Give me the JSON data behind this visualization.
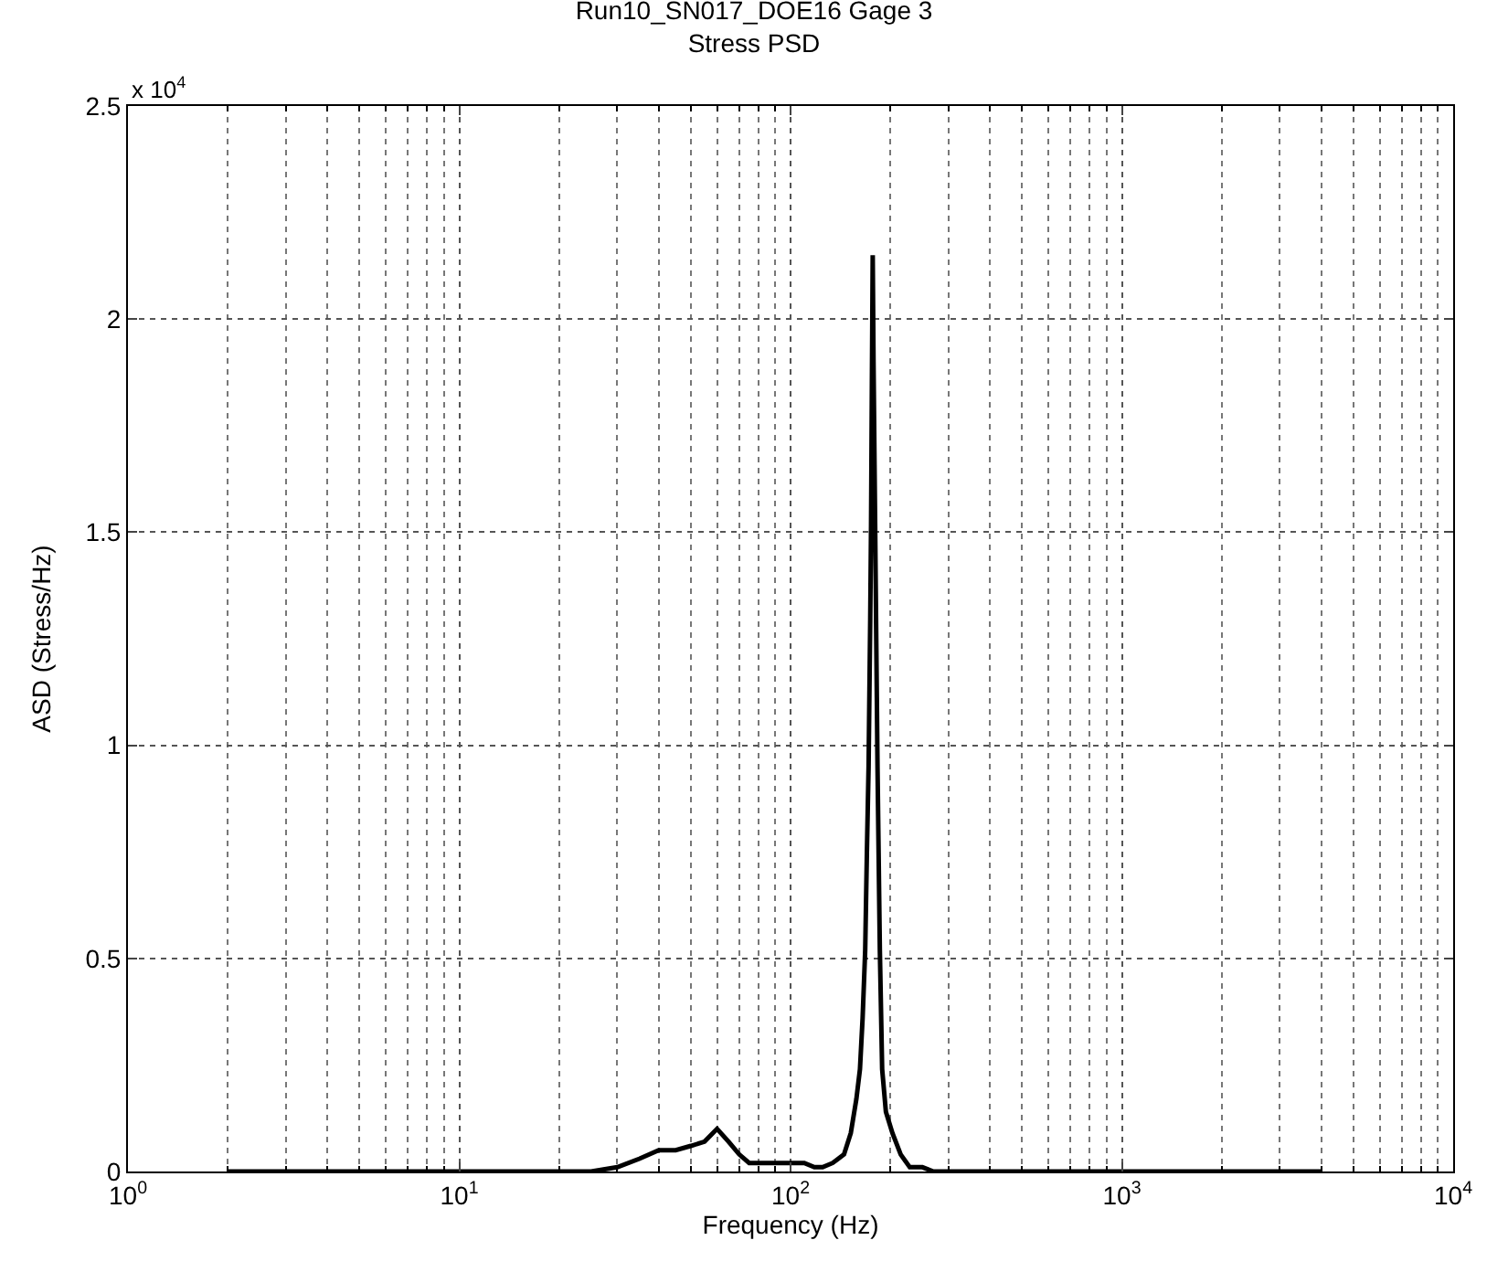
{
  "chart_data": {
    "type": "line",
    "title": "Run10_SN017_DOE16 Gage 3",
    "subtitle": "Stress PSD",
    "xlabel": "Frequency (Hz)",
    "ylabel": "ASD (Stress/Hz)",
    "annotations": [
      "x 10$^{4}$"
    ],
    "log": "x",
    "grid": true,
    "marker": "none",
    "line_style": "solid",
    "xlim": [
      1,
      10000
    ],
    "xticks": [
      {
        "value": 1,
        "label": "10$^{0}$"
      },
      {
        "value": 10,
        "label": "10$^{1}$"
      },
      {
        "value": 100,
        "label": "10$^{2}$"
      },
      {
        "value": 1000,
        "label": "10$^{3}$"
      },
      {
        "value": 10000,
        "label": "10$^{4}$"
      }
    ],
    "ylim": [
      0,
      2.5
    ],
    "yticks": [
      0,
      0.5,
      1,
      1.5,
      2,
      2.5
    ],
    "series": [
      {
        "color": "#000000",
        "x": [
          2,
          5,
          10,
          20,
          25,
          30,
          35,
          40,
          45,
          50,
          55,
          60,
          65,
          70,
          75,
          80,
          90,
          100,
          110,
          118,
          125,
          134,
          145,
          152,
          158,
          162,
          165,
          168,
          170,
          172,
          174,
          175,
          176,
          177,
          178,
          180,
          183,
          186,
          189,
          194,
          203,
          215,
          229,
          250,
          270,
          300,
          400,
          600,
          1000,
          2000,
          4000
        ],
        "values": [
          0,
          0,
          0,
          0,
          0,
          0.01,
          0.03,
          0.05,
          0.05,
          0.06,
          0.07,
          0.1,
          0.07,
          0.04,
          0.02,
          0.02,
          0.02,
          0.02,
          0.02,
          0.01,
          0.01,
          0.02,
          0.04,
          0.09,
          0.17,
          0.24,
          0.36,
          0.52,
          0.75,
          0.95,
          1.3,
          1.52,
          1.85,
          2.15,
          1.9,
          1.52,
          0.95,
          0.52,
          0.24,
          0.14,
          0.09,
          0.04,
          0.01,
          0.01,
          0,
          0,
          0,
          0,
          0,
          0,
          0
        ]
      }
    ]
  }
}
